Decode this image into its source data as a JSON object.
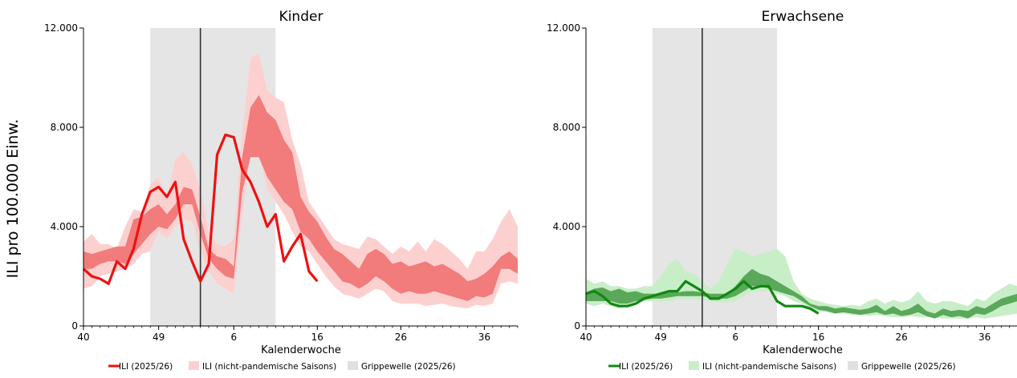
{
  "ylabel": "ILI pro 100.000 Einw.",
  "chart_data": [
    {
      "type": "line",
      "title": "Kinder",
      "xlabel": "Kalenderwoche",
      "ylabel": "ILI pro 100.000 Einw.",
      "ylim": [
        0,
        12000
      ],
      "yticks": [
        0,
        4000,
        8000,
        12000
      ],
      "ytick_labels": [
        "0",
        "4.000",
        "8.000",
        "12.000"
      ],
      "xticks": [
        40,
        49,
        6,
        16,
        26,
        36
      ],
      "week_start": 40,
      "weeks_count": 53,
      "grippewelle_weeks": [
        48,
        63
      ],
      "vline_week": 54,
      "colors": {
        "line": "#ee1111",
        "inner_band": "#f27b7b",
        "outer_band": "#fdd0d0",
        "wave": "#e5e5e5"
      },
      "band_outer_lower": [
        1500,
        1600,
        2000,
        2100,
        2200,
        2300,
        2500,
        2900,
        3000,
        3800,
        3500,
        4000,
        4300,
        4200,
        3000,
        2200,
        1700,
        1500,
        1300,
        4500,
        7000,
        7000,
        5500,
        5000,
        4500,
        3800,
        3200,
        3000,
        2500,
        2000,
        1600,
        1300,
        1200,
        1100,
        1300,
        1500,
        1400,
        1000,
        900,
        900,
        900,
        800,
        850,
        900,
        800,
        750,
        700,
        850,
        800,
        900,
        1700,
        1800,
        1700
      ],
      "band_inner_lower": [
        2300,
        2300,
        2500,
        2600,
        2600,
        2500,
        2900,
        3300,
        3700,
        4000,
        3900,
        4300,
        4900,
        4900,
        3700,
        2700,
        2300,
        2000,
        1900,
        5400,
        6800,
        6800,
        6000,
        5500,
        5000,
        4700,
        3800,
        3500,
        3000,
        2600,
        2200,
        1800,
        1700,
        1500,
        1700,
        2000,
        1800,
        1500,
        1300,
        1400,
        1300,
        1300,
        1400,
        1300,
        1200,
        1100,
        1000,
        1200,
        1150,
        1300,
        2300,
        2300,
        2100
      ],
      "band_inner_upper": [
        3000,
        2900,
        3000,
        3100,
        3200,
        3200,
        4300,
        4400,
        4700,
        4900,
        4500,
        4900,
        5600,
        5500,
        4400,
        3100,
        2800,
        2700,
        2400,
        6800,
        8800,
        9300,
        8600,
        8300,
        7500,
        7000,
        5200,
        4600,
        4200,
        3600,
        3100,
        2900,
        2600,
        2300,
        2900,
        3100,
        2900,
        2500,
        2600,
        2400,
        2500,
        2600,
        2400,
        2500,
        2300,
        2100,
        1800,
        1900,
        2100,
        2400,
        2800,
        3000,
        2700
      ],
      "band_outer_upper": [
        3400,
        3700,
        3300,
        3300,
        3100,
        4000,
        4700,
        4600,
        5700,
        6000,
        5100,
        6700,
        7000,
        6500,
        5500,
        3800,
        3300,
        3200,
        3500,
        7800,
        10800,
        11000,
        9500,
        9200,
        9000,
        7500,
        6500,
        5000,
        4500,
        4000,
        3500,
        3300,
        3200,
        3100,
        3600,
        3500,
        3200,
        2900,
        3200,
        3000,
        3400,
        3000,
        3500,
        3300,
        3000,
        2700,
        2300,
        3000,
        3000,
        3500,
        4200,
        4700,
        4000
      ],
      "values": [
        2300,
        2000,
        1900,
        1700,
        2600,
        2300,
        3100,
        4500,
        5400,
        5600,
        5200,
        5800,
        3500,
        2600,
        1800,
        2500,
        6900,
        7700,
        7600,
        6300,
        5800,
        5000,
        4000,
        4500,
        2600,
        3200,
        3700,
        2200,
        1800
      ]
    },
    {
      "type": "line",
      "title": "Erwachsene",
      "xlabel": "Kalenderwoche",
      "ylim": [
        0,
        12000
      ],
      "yticks": [
        0,
        4000,
        8000,
        12000
      ],
      "ytick_labels": [
        "0",
        "4.000",
        "8.000",
        "12.000"
      ],
      "xticks": [
        40,
        49,
        6,
        16,
        26,
        36
      ],
      "week_start": 40,
      "weeks_count": 53,
      "grippewelle_weeks": [
        48,
        63
      ],
      "vline_week": 54,
      "colors": {
        "line": "#118811",
        "inner_band": "#5aa85a",
        "outer_band": "#c8eec8",
        "wave": "#e5e5e5"
      },
      "band_outer_lower": [
        900,
        800,
        900,
        800,
        700,
        800,
        900,
        1000,
        1000,
        1000,
        1000,
        1100,
        1100,
        1100,
        1050,
        1000,
        950,
        950,
        1000,
        1200,
        1400,
        1400,
        1400,
        1300,
        1200,
        1000,
        900,
        700,
        600,
        550,
        500,
        500,
        450,
        450,
        400,
        450,
        400,
        350,
        350,
        400,
        350,
        350,
        350,
        300,
        300,
        300,
        300,
        350,
        300,
        350,
        400,
        450,
        500
      ],
      "band_inner_lower": [
        1000,
        1000,
        1000,
        1000,
        900,
        900,
        1000,
        1050,
        1100,
        1100,
        1150,
        1200,
        1200,
        1200,
        1200,
        1150,
        1100,
        1100,
        1200,
        1400,
        1600,
        1600,
        1500,
        1400,
        1300,
        1200,
        1000,
        800,
        650,
        600,
        500,
        550,
        500,
        450,
        500,
        550,
        450,
        500,
        400,
        450,
        550,
        400,
        300,
        450,
        350,
        400,
        300,
        500,
        450,
        600,
        800,
        900,
        1000
      ],
      "band_inner_upper": [
        1350,
        1500,
        1550,
        1400,
        1500,
        1350,
        1400,
        1300,
        1300,
        1300,
        1350,
        1350,
        1400,
        1400,
        1350,
        1300,
        1300,
        1300,
        1600,
        2000,
        2300,
        2100,
        2000,
        1800,
        1600,
        1400,
        1200,
        900,
        800,
        800,
        700,
        750,
        700,
        650,
        700,
        850,
        600,
        800,
        600,
        700,
        900,
        600,
        500,
        700,
        600,
        650,
        600,
        800,
        700,
        900,
        1100,
        1200,
        1300
      ],
      "band_outer_upper": [
        1900,
        1700,
        1800,
        1600,
        1600,
        1500,
        1500,
        1600,
        1600,
        2000,
        2500,
        2700,
        2200,
        2100,
        1800,
        1500,
        1800,
        2500,
        3100,
        3000,
        2800,
        2900,
        3000,
        3100,
        2800,
        1800,
        1300,
        1100,
        1000,
        900,
        850,
        800,
        850,
        800,
        1000,
        1100,
        900,
        1050,
        950,
        1050,
        1400,
        1000,
        900,
        1000,
        1000,
        900,
        800,
        1100,
        1000,
        1300,
        1500,
        1700,
        1600
      ],
      "values": [
        1300,
        1400,
        1200,
        900,
        800,
        800,
        900,
        1100,
        1200,
        1300,
        1400,
        1400,
        1800,
        1600,
        1400,
        1100,
        1100,
        1300,
        1500,
        1800,
        1500,
        1600,
        1600,
        1000,
        800,
        800,
        800,
        700,
        500
      ]
    }
  ],
  "legend": [
    {
      "label": "ILI (2025/26)",
      "kind": "line"
    },
    {
      "label": "ILI (nicht-pandemische Saisons)",
      "kind": "band"
    },
    {
      "label": "Grippewelle (2025/26)",
      "kind": "wave"
    }
  ]
}
